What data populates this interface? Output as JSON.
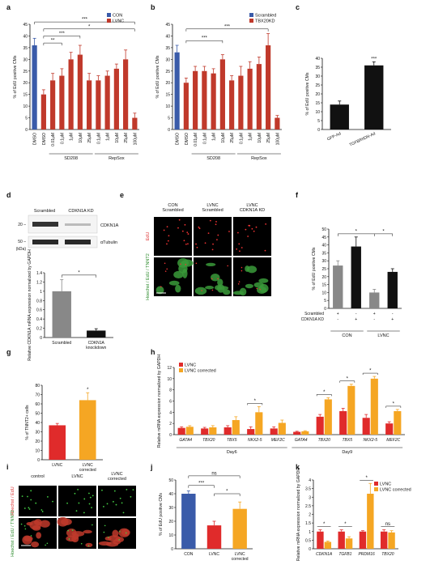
{
  "chart_data": [
    {
      "panel": "a",
      "type": "bar",
      "ylabel": "% of EdU positive CMs",
      "ylim": [
        0,
        45
      ],
      "yticks": [
        0,
        5,
        10,
        15,
        20,
        25,
        30,
        35,
        40,
        45
      ],
      "legend": [
        {
          "label": "CON",
          "color": "#3a5ba9"
        },
        {
          "label": "LVNC",
          "color": "#c0392b"
        }
      ],
      "categories": [
        "DMSO",
        "DMSO",
        "0.01μM",
        "0.1μM",
        "1μM",
        "10μM",
        "25μM",
        "0.1μM",
        "1μM",
        "10μM",
        "25μM",
        "100μM"
      ],
      "values": [
        36,
        15,
        21,
        23,
        30,
        32,
        21,
        21,
        23,
        26,
        30,
        5
      ],
      "errors": [
        3,
        2,
        3,
        3,
        3,
        4,
        3,
        2,
        2,
        2,
        4,
        2
      ],
      "colors": [
        "#3a5ba9",
        "#c0392b",
        "#c0392b",
        "#c0392b",
        "#c0392b",
        "#c0392b",
        "#c0392b",
        "#c0392b",
        "#c0392b",
        "#c0392b",
        "#c0392b",
        "#c0392b"
      ],
      "groups": [
        {
          "label": "SD208",
          "from": 2,
          "to": 6
        },
        {
          "label": "RepSox",
          "from": 7,
          "to": 11
        }
      ],
      "significance": [
        {
          "from": 1,
          "to": 3,
          "label": "**",
          "level": 37
        },
        {
          "from": 1,
          "to": 5,
          "label": "***",
          "level": 40
        },
        {
          "from": 1,
          "to": 11,
          "label": "*",
          "level": 43
        },
        {
          "from": 0,
          "to": 11,
          "label": "***",
          "level": 46
        }
      ]
    },
    {
      "panel": "b",
      "type": "bar",
      "ylabel": "% of EdU positive CMs",
      "ylim": [
        0,
        45
      ],
      "yticks": [
        0,
        5,
        10,
        15,
        20,
        25,
        30,
        35,
        40,
        45
      ],
      "legend": [
        {
          "label": "Scrambled",
          "color": "#3a5ba9"
        },
        {
          "label": "TBX20KD",
          "color": "#c0392b"
        }
      ],
      "categories": [
        "DMSO",
        "DMSO",
        "0.01μM",
        "0.1μM",
        "1μM",
        "10μM",
        "25μM",
        "0.1μM",
        "1μM",
        "10μM",
        "25μM",
        "100μM"
      ],
      "values": [
        33,
        20,
        25,
        25,
        24,
        30,
        21,
        23,
        26,
        28,
        36,
        5
      ],
      "errors": [
        3,
        2,
        2,
        2,
        2,
        2,
        2,
        4,
        3,
        3,
        5,
        1
      ],
      "colors": [
        "#3a5ba9",
        "#c0392b",
        "#c0392b",
        "#c0392b",
        "#c0392b",
        "#c0392b",
        "#c0392b",
        "#c0392b",
        "#c0392b",
        "#c0392b",
        "#c0392b",
        "#c0392b"
      ],
      "groups": [
        {
          "label": "SD208",
          "from": 2,
          "to": 6
        },
        {
          "label": "RepSox",
          "from": 7,
          "to": 11
        }
      ],
      "significance": [
        {
          "from": 1,
          "to": 5,
          "label": "***",
          "level": 38
        },
        {
          "from": 1,
          "to": 10,
          "label": "***",
          "level": 43
        }
      ]
    },
    {
      "panel": "c",
      "type": "bar",
      "ylabel": "% of EdU positive CMs",
      "ylim": [
        0,
        40
      ],
      "yticks": [
        0,
        5,
        10,
        15,
        20,
        25,
        30,
        35,
        40
      ],
      "categories": [
        "GFP-Ad",
        "TGFBRIIDN-Ad"
      ],
      "values": [
        14,
        36
      ],
      "errors": [
        2,
        2
      ],
      "colors": [
        "#111111",
        "#111111"
      ],
      "annotations": [
        {
          "index": 1,
          "label": "***"
        }
      ]
    },
    {
      "panel": "d",
      "type": "bar",
      "ylabel": "Relative CDKN1A mRNA expression normalized by GAPDH",
      "ylim": [
        0,
        1.4
      ],
      "yticks": [
        0,
        0.2,
        0.4,
        0.6,
        0.8,
        1.0,
        1.2,
        1.4
      ],
      "categories": [
        "Scrambled",
        "CDKN1A knockdown"
      ],
      "values": [
        1.0,
        0.15
      ],
      "errors": [
        0.25,
        0.04
      ],
      "colors": [
        "#888888",
        "#111111"
      ],
      "significance": [
        {
          "from": 0,
          "to": 1,
          "label": "*",
          "level": 1.35
        }
      ],
      "blot": {
        "lanes": [
          "Scrambled",
          "CDKN1A KD"
        ],
        "bands": [
          "CDKN1A",
          "αTubulin"
        ],
        "markers": [
          "20 –",
          "50 –",
          "(kDa)"
        ]
      }
    },
    {
      "panel": "f",
      "type": "bar",
      "ylabel": "% of EdU positive CMs",
      "ylim": [
        0,
        50
      ],
      "yticks": [
        0,
        5,
        10,
        15,
        20,
        25,
        30,
        35,
        40,
        45,
        50
      ],
      "categories": [
        "CON Scrambled",
        "CON CDKN1A KD",
        "LVNC Scrambled",
        "LVNC CDKN1A KD"
      ],
      "values": [
        27,
        39,
        10,
        23
      ],
      "errors": [
        3,
        6,
        2,
        2
      ],
      "colors": [
        "#888888",
        "#111111",
        "#888888",
        "#111111"
      ],
      "groups": [
        {
          "label": "CON",
          "from": 0,
          "to": 1
        },
        {
          "label": "LVNC",
          "from": 2,
          "to": 3
        }
      ],
      "row_labels": [
        "Scrambled",
        "CDKN1A KD"
      ],
      "row_signs": [
        [
          "+",
          "-",
          "+",
          "-"
        ],
        [
          "-",
          "+",
          "-",
          "+"
        ]
      ],
      "significance": [
        {
          "from": 0,
          "to": 2,
          "label": "*",
          "level": 47
        },
        {
          "from": 2,
          "to": 3,
          "label": "*",
          "level": 47
        }
      ]
    },
    {
      "panel": "g",
      "type": "bar",
      "ylabel": "% of TNNT2+ cells",
      "ylim": [
        0,
        80
      ],
      "yticks": [
        0,
        10,
        20,
        30,
        40,
        50,
        60,
        70,
        80
      ],
      "categories": [
        "LVNC",
        "LVNC corrected"
      ],
      "values": [
        37,
        64
      ],
      "errors": [
        2,
        8
      ],
      "colors": [
        "#e02b2b",
        "#f5a623"
      ],
      "annotations": [
        {
          "index": 1,
          "label": "*"
        }
      ]
    },
    {
      "panel": "h",
      "type": "bar",
      "ylabel": "Relative mRNA expression normalized by GAPDH",
      "ylim": [
        0,
        12
      ],
      "yticks": [
        0,
        2,
        4,
        6,
        8,
        10,
        12
      ],
      "legend": [
        {
          "label": "LVNC",
          "color": "#e02b2b"
        },
        {
          "label": "LVNC corrected",
          "color": "#f5a623"
        }
      ],
      "categories": [
        "GATA4",
        "TBX20",
        "TBX5",
        "NKX2-5",
        "MEF2C",
        "GATA4",
        "TBX20",
        "TBX5",
        "NKX2-5",
        "MEF2C"
      ],
      "series": [
        {
          "name": "LVNC",
          "values": [
            1.2,
            1.1,
            1.3,
            1.0,
            1.1,
            0.5,
            3.2,
            4.2,
            3.0,
            2.0
          ],
          "errors": [
            0.2,
            0.2,
            0.3,
            0.4,
            0.3,
            0.1,
            0.4,
            0.5,
            0.6,
            0.3
          ]
        },
        {
          "name": "LVNC corrected",
          "values": [
            1.4,
            1.3,
            2.6,
            4.0,
            2.1,
            0.6,
            6.3,
            8.7,
            10.0,
            4.2
          ],
          "errors": [
            0.2,
            0.3,
            0.6,
            1.0,
            0.5,
            0.1,
            0.3,
            0.3,
            0.4,
            0.3
          ]
        }
      ],
      "groups": [
        {
          "label": "Day6",
          "from": 0,
          "to": 4
        },
        {
          "label": "Day9",
          "from": 5,
          "to": 9
        }
      ],
      "annotations": [
        {
          "index": 3,
          "label": "*"
        },
        {
          "index": 6,
          "label": "*"
        },
        {
          "index": 7,
          "label": "*"
        },
        {
          "index": 8,
          "label": "*"
        },
        {
          "index": 9,
          "label": "*"
        }
      ]
    },
    {
      "panel": "j",
      "type": "bar",
      "ylabel": "% of EdU positive CMs",
      "ylim": [
        0,
        50
      ],
      "yticks": [
        0,
        10,
        20,
        30,
        40,
        50
      ],
      "categories": [
        "CON",
        "LVNC",
        "LVNC corrected"
      ],
      "values": [
        40,
        17,
        29
      ],
      "errors": [
        2,
        3,
        5
      ],
      "colors": [
        "#3a5ba9",
        "#e02b2b",
        "#f5a623"
      ],
      "significance": [
        {
          "from": 0,
          "to": 1,
          "label": "***",
          "level": 46
        },
        {
          "from": 1,
          "to": 2,
          "label": "*",
          "level": 40
        },
        {
          "from": 0,
          "to": 2,
          "label": "ns",
          "level": 53
        }
      ]
    },
    {
      "panel": "k",
      "type": "bar",
      "ylabel": "Relative mRNA expression normalized by GAPDH",
      "ylim": [
        0,
        4
      ],
      "yticks": [
        0,
        0.5,
        1,
        1.5,
        2,
        2.5,
        3,
        3.5,
        4
      ],
      "legend": [
        {
          "label": "LVNC",
          "color": "#e02b2b"
        },
        {
          "label": "LVNC corrected",
          "color": "#f5a623"
        }
      ],
      "categories": [
        "CDKN1A",
        "TGFB1",
        "PRDM16",
        "TBX20"
      ],
      "series": [
        {
          "name": "LVNC",
          "values": [
            1.0,
            1.0,
            1.0,
            1.0
          ],
          "errors": [
            0.1,
            0.1,
            0.05,
            0.1
          ]
        },
        {
          "name": "LVNC corrected",
          "values": [
            0.4,
            0.6,
            3.2,
            0.95
          ],
          "errors": [
            0.05,
            0.1,
            0.6,
            0.1
          ]
        }
      ],
      "significance": [
        {
          "index": 0,
          "label": "*"
        },
        {
          "index": 1,
          "label": "*"
        },
        {
          "index": 2,
          "label": "*"
        },
        {
          "index": 3,
          "label": "ns"
        }
      ]
    }
  ],
  "panels": {
    "letters": [
      "a",
      "b",
      "c",
      "d",
      "e",
      "f",
      "g",
      "h",
      "i",
      "j",
      "k"
    ],
    "e": {
      "columns": [
        "CON\nScrambled",
        "LVNC\nScrambled",
        "LVNC\nCDKN1A KD"
      ],
      "rows": [
        "EdU",
        "Hoechst / EdU / TNNT2"
      ]
    },
    "i": {
      "columns": [
        "control",
        "LVNC",
        "LVNC\ncorrected"
      ],
      "rows": [
        "Hoechst / EdU",
        "Hoechst / EdU / TNNT2"
      ]
    }
  }
}
